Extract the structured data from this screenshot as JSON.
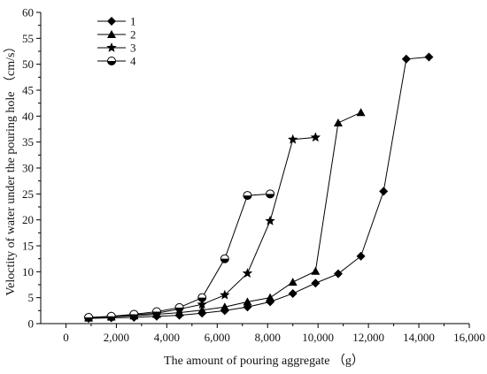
{
  "chart_data": {
    "type": "line",
    "title": "",
    "xlabel": "The amount of  pouring aggregate （g）",
    "ylabel": "Veloctity of water under the pouring hole （cm/s）",
    "xlim": [
      -1000,
      16000
    ],
    "ylim": [
      0,
      60
    ],
    "xticks": [
      0,
      2000,
      4000,
      6000,
      8000,
      10000,
      12000,
      14000,
      16000
    ],
    "xtick_labels": [
      "0",
      "2,000",
      "4,000",
      "6,000",
      "8,000",
      "10,000",
      "12,000",
      "14,000",
      "16,000"
    ],
    "yticks": [
      0,
      5,
      10,
      15,
      20,
      25,
      30,
      35,
      40,
      45,
      50,
      55,
      60
    ],
    "ytick_labels": [
      "0",
      "5",
      "10",
      "15",
      "20",
      "25",
      "30",
      "35",
      "40",
      "45",
      "50",
      "55",
      "60"
    ],
    "grid": false,
    "legend_position": "top-left",
    "series": [
      {
        "name": "1",
        "marker": "diamond",
        "x": [
          900,
          1800,
          2700,
          3600,
          4500,
          5400,
          6300,
          7200,
          8100,
          9000,
          9900,
          10800,
          11700,
          12600,
          13500,
          14400
        ],
        "y": [
          1.0,
          1.1,
          1.2,
          1.4,
          1.6,
          2.0,
          2.5,
          3.2,
          4.2,
          5.8,
          7.8,
          9.6,
          13.0,
          25.5,
          51.0,
          51.4
        ]
      },
      {
        "name": "2",
        "marker": "triangle",
        "x": [
          900,
          1800,
          2700,
          3600,
          4500,
          5400,
          6300,
          7200,
          8100,
          9000,
          9900,
          10800,
          11700
        ],
        "y": [
          1.1,
          1.3,
          1.5,
          1.8,
          2.1,
          2.6,
          3.2,
          4.2,
          5.0,
          8.0,
          10.1,
          38.7,
          40.7
        ]
      },
      {
        "name": "3",
        "marker": "star",
        "x": [
          900,
          1800,
          2700,
          3600,
          4500,
          5400,
          6300,
          7200,
          8100,
          9000,
          9900
        ],
        "y": [
          1.1,
          1.3,
          1.7,
          2.0,
          2.8,
          3.7,
          5.5,
          9.7,
          19.8,
          35.5,
          35.9
        ]
      },
      {
        "name": "4",
        "marker": "half-circle",
        "x": [
          900,
          1800,
          2700,
          3600,
          4500,
          5400,
          6300,
          7200,
          8100
        ],
        "y": [
          1.2,
          1.4,
          1.8,
          2.3,
          3.1,
          5.0,
          12.5,
          24.7,
          25.0
        ]
      }
    ]
  }
}
